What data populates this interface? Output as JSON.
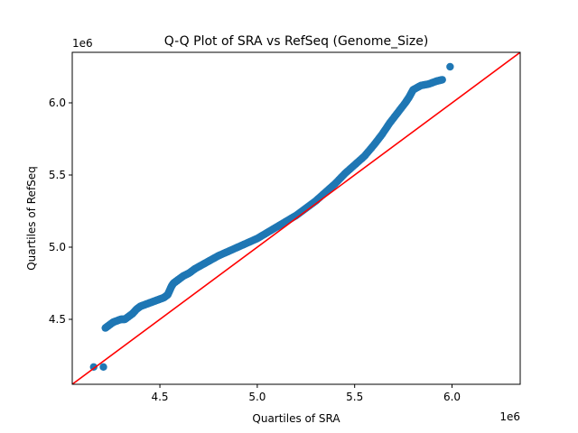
{
  "chart_data": {
    "type": "scatter",
    "title": "Q-Q Plot of SRA vs RefSeq (Genome_Size)",
    "xlabel": "Quartiles of SRA",
    "ylabel": "Quartiles of RefSeq",
    "x_offset_label": "1e6",
    "y_offset_label": "1e6",
    "xlim": [
      4.05,
      6.35
    ],
    "ylim": [
      4.05,
      6.35
    ],
    "x_ticks": [
      4.5,
      5.0,
      5.5,
      6.0
    ],
    "x_tick_labels": [
      "4.5",
      "5.0",
      "5.5",
      "6.0"
    ],
    "y_ticks": [
      4.5,
      5.0,
      5.5,
      6.0
    ],
    "y_tick_labels": [
      "4.5",
      "5.0",
      "5.5",
      "6.0"
    ],
    "grid": false,
    "legend": "none",
    "reference_line": {
      "x": [
        4.05,
        6.35
      ],
      "y": [
        4.05,
        6.35
      ],
      "color": "#ff0000"
    },
    "colors": {
      "points": "#1f77b4",
      "reference_line": "#ff0000"
    },
    "series": [
      {
        "x": [
          4.16,
          4.21,
          4.22,
          4.24,
          4.26,
          4.28,
          4.3,
          4.32,
          4.34,
          4.36,
          4.38,
          4.4,
          4.42,
          4.44,
          4.46,
          4.48,
          4.5,
          4.52,
          4.54,
          4.55,
          4.56,
          4.57,
          4.58,
          4.59,
          4.6,
          4.62,
          4.65,
          4.68,
          4.72,
          4.76,
          4.8,
          4.85,
          4.9,
          4.95,
          5.0,
          5.05,
          5.1,
          5.15,
          5.2,
          5.25,
          5.3,
          5.35,
          5.4,
          5.45,
          5.5,
          5.55,
          5.6,
          5.64,
          5.68,
          5.72,
          5.76,
          5.78,
          5.8,
          5.84,
          5.88,
          5.92,
          5.95,
          5.99
        ],
        "y": [
          4.17,
          4.17,
          4.44,
          4.46,
          4.48,
          4.49,
          4.5,
          4.5,
          4.52,
          4.54,
          4.57,
          4.59,
          4.6,
          4.61,
          4.62,
          4.63,
          4.64,
          4.65,
          4.67,
          4.7,
          4.73,
          4.75,
          4.76,
          4.77,
          4.78,
          4.8,
          4.82,
          4.85,
          4.88,
          4.91,
          4.94,
          4.97,
          5.0,
          5.03,
          5.06,
          5.1,
          5.14,
          5.18,
          5.22,
          5.27,
          5.32,
          5.38,
          5.44,
          5.51,
          5.57,
          5.63,
          5.71,
          5.78,
          5.86,
          5.93,
          6.0,
          6.04,
          6.09,
          6.12,
          6.13,
          6.15,
          6.16,
          6.25
        ]
      }
    ]
  }
}
